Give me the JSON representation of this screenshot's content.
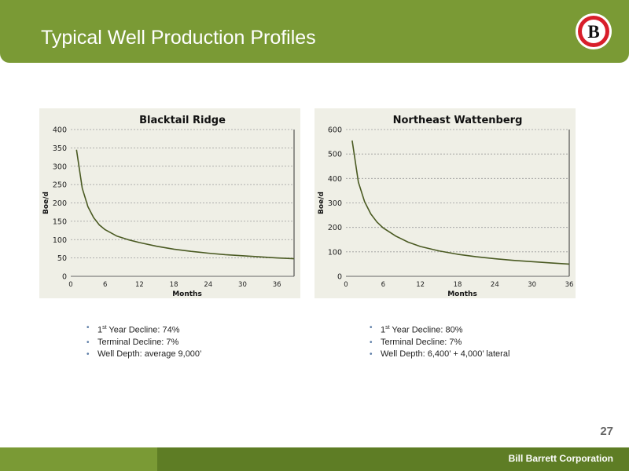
{
  "slide": {
    "title": "Typical Well Production Profiles",
    "page_number": "27",
    "company": "Bill Barrett Corporation",
    "logo_letter": "B"
  },
  "colors": {
    "header_green": "#7a9a35",
    "footer_dark_green": "#5e7d25",
    "curve": "#4a5a22",
    "logo_red": "#d81e2a"
  },
  "left_bullets": [
    {
      "pre": "1",
      "sup": "st",
      "text": " Year Decline: 74%"
    },
    {
      "pre": "",
      "sup": "",
      "text": "Terminal Decline: 7%"
    },
    {
      "pre": "",
      "sup": "",
      "text": "Well Depth: average 9,000’"
    }
  ],
  "right_bullets": [
    {
      "pre": "1",
      "sup": "st",
      "text": " Year Decline: 80%"
    },
    {
      "pre": "",
      "sup": "",
      "text": "Terminal Decline: 7%"
    },
    {
      "pre": "",
      "sup": "",
      "text": "Well Depth: 6,400’ + 4,000’ lateral"
    }
  ],
  "chart_data": [
    {
      "type": "line",
      "title": "Blacktail Ridge",
      "xlabel": "Months",
      "ylabel": "Boe/d",
      "xlim": [
        0,
        39
      ],
      "ylim": [
        0,
        400
      ],
      "xticks": [
        0,
        6,
        12,
        18,
        24,
        30,
        36
      ],
      "yticks": [
        0,
        50,
        100,
        150,
        200,
        250,
        300,
        350,
        400
      ],
      "grid": true,
      "legend": "none",
      "series": [
        {
          "x": [
            1,
            2,
            3,
            4,
            5,
            6,
            8,
            10,
            12,
            15,
            18,
            21,
            24,
            27,
            30,
            33,
            36,
            39
          ],
          "y": [
            345,
            240,
            190,
            160,
            140,
            127,
            110,
            100,
            92,
            82,
            74,
            68,
            63,
            59,
            56,
            53,
            50,
            48
          ]
        }
      ]
    },
    {
      "type": "line",
      "title": "Northeast Wattenberg",
      "xlabel": "Months",
      "ylabel": "Boe/d",
      "xlim": [
        0,
        36
      ],
      "ylim": [
        0,
        600
      ],
      "xticks": [
        0,
        6,
        12,
        18,
        24,
        30,
        36
      ],
      "yticks": [
        0,
        100,
        200,
        300,
        400,
        500,
        600
      ],
      "grid": true,
      "legend": "none",
      "series": [
        {
          "x": [
            1,
            2,
            3,
            4,
            5,
            6,
            8,
            10,
            12,
            15,
            18,
            21,
            24,
            27,
            30,
            33,
            36
          ],
          "y": [
            555,
            385,
            305,
            255,
            222,
            198,
            165,
            140,
            122,
            104,
            90,
            80,
            72,
            65,
            60,
            55,
            50
          ]
        }
      ]
    }
  ]
}
